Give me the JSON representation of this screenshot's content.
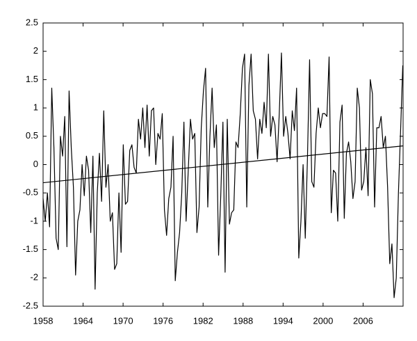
{
  "chart_data": {
    "type": "line",
    "xlim": [
      1958,
      2012
    ],
    "xticks": [
      1958,
      1964,
      1970,
      1976,
      1982,
      1988,
      1994,
      2000,
      2006
    ],
    "ylim": [
      -2.5,
      2.5
    ],
    "yticks": [
      -2.5,
      -2,
      -1.5,
      -1,
      -0.5,
      0,
      0.5,
      1,
      1.5,
      2,
      2.5
    ],
    "grid": false,
    "series": [
      {
        "color": "#000000",
        "x": [
          1958,
          1958.325,
          1958.65,
          1958.975,
          1959.3,
          1959.625,
          1959.95,
          1960.275,
          1960.6,
          1960.925,
          1961.25,
          1961.575,
          1961.9,
          1962.225,
          1962.55,
          1962.875,
          1963.2,
          1963.525,
          1963.85,
          1964.175,
          1964.5,
          1964.825,
          1965.15,
          1965.475,
          1965.8,
          1966.125,
          1966.45,
          1966.775,
          1967.1,
          1967.425,
          1967.75,
          1968.075,
          1968.4,
          1968.725,
          1969.05,
          1969.375,
          1969.7,
          1970.025,
          1970.35,
          1970.675,
          1971,
          1971.325,
          1971.65,
          1971.975,
          1972.3,
          1972.625,
          1972.95,
          1973.275,
          1973.6,
          1973.925,
          1974.25,
          1974.575,
          1974.9,
          1975.225,
          1975.55,
          1975.875,
          1976.2,
          1976.525,
          1976.85,
          1977.175,
          1977.5,
          1977.825,
          1978.15,
          1978.475,
          1978.8,
          1979.125,
          1979.45,
          1979.775,
          1980.1,
          1980.425,
          1980.75,
          1981.075,
          1981.4,
          1981.725,
          1982.05,
          1982.375,
          1982.7,
          1983.025,
          1983.35,
          1983.675,
          1984,
          1984.325,
          1984.65,
          1984.975,
          1985.3,
          1985.625,
          1985.95,
          1986.275,
          1986.6,
          1986.925,
          1987.25,
          1987.575,
          1987.9,
          1988.225,
          1988.55,
          1988.875,
          1989.2,
          1989.525,
          1989.85,
          1990.175,
          1990.5,
          1990.825,
          1991.15,
          1991.475,
          1991.8,
          1992.125,
          1992.45,
          1992.775,
          1993.1,
          1993.425,
          1993.75,
          1994.075,
          1994.4,
          1994.725,
          1995.05,
          1995.375,
          1995.7,
          1996.025,
          1996.35,
          1996.675,
          1997,
          1997.325,
          1997.65,
          1997.975,
          1998.3,
          1998.625,
          1998.95,
          1999.275,
          1999.6,
          1999.925,
          2000.25,
          2000.575,
          2000.9,
          2001.225,
          2001.55,
          2001.875,
          2002.2,
          2002.525,
          2002.85,
          2003.175,
          2003.5,
          2003.825,
          2004.15,
          2004.475,
          2004.8,
          2005.125,
          2005.45,
          2005.775,
          2006.1,
          2006.425,
          2006.75,
          2007.075,
          2007.4,
          2007.725,
          2008.05,
          2008.375,
          2008.7,
          2009.025,
          2009.35,
          2009.675,
          2010,
          2010.325,
          2010.65,
          2010.975,
          2011.3,
          2011.625,
          2011.95
        ],
        "values": [
          -0.6,
          -1.0,
          -0.5,
          -1.1,
          1.35,
          0.3,
          -1.3,
          -1.5,
          0.5,
          0.15,
          0.85,
          -1.45,
          1.3,
          0.3,
          -0.4,
          -1.95,
          -1.0,
          -0.8,
          0.0,
          -0.55,
          0.15,
          -0.1,
          -1.2,
          0.15,
          -2.2,
          -0.5,
          0.2,
          -0.65,
          0.95,
          -0.4,
          0.0,
          -1.0,
          -0.85,
          -1.85,
          -1.75,
          -0.5,
          -1.55,
          0.35,
          -0.7,
          -0.65,
          0.25,
          0.35,
          -0.05,
          -0.15,
          0.8,
          0.45,
          1.0,
          0.3,
          1.05,
          0.15,
          0.95,
          1.0,
          0.0,
          0.55,
          0.45,
          0.9,
          -0.8,
          -1.25,
          -0.6,
          -0.4,
          0.5,
          -2.05,
          -1.55,
          -1.2,
          -0.5,
          0.75,
          -1.0,
          -0.1,
          0.8,
          0.45,
          0.55,
          -1.2,
          -0.75,
          0.65,
          1.3,
          1.7,
          -0.75,
          0.5,
          1.35,
          0.3,
          0.7,
          -1.6,
          -0.55,
          0.75,
          -1.9,
          0.8,
          -1.05,
          -0.85,
          -0.8,
          0.4,
          0.3,
          0.9,
          1.7,
          1.95,
          -0.75,
          1.4,
          1.95,
          0.95,
          0.8,
          0.1,
          0.8,
          0.55,
          1.1,
          0.65,
          1.95,
          0.5,
          0.85,
          0.7,
          0.05,
          0.9,
          1.97,
          0.5,
          0.85,
          0.55,
          0.1,
          0.95,
          0.6,
          1.35,
          -1.65,
          -1.0,
          0.0,
          -1.3,
          0.1,
          1.85,
          -0.3,
          -0.4,
          0.55,
          1.0,
          0.65,
          0.9,
          0.9,
          0.85,
          1.9,
          -0.85,
          -0.1,
          -0.15,
          -1.0,
          0.75,
          1.05,
          -0.95,
          0.2,
          0.4,
          0.05,
          -0.6,
          -0.3,
          1.35,
          1.0,
          -0.45,
          -0.3,
          0.3,
          -0.55,
          1.5,
          1.25,
          -0.75,
          0.65,
          0.65,
          0.85,
          0.3,
          0.5,
          -0.4,
          -1.75,
          -1.4,
          -2.35,
          -2.0,
          -0.5,
          0.6,
          1.75
        ]
      },
      {
        "color": "#000000",
        "x": [
          1958,
          2012
        ],
        "values": [
          -0.32,
          0.33
        ]
      }
    ]
  }
}
